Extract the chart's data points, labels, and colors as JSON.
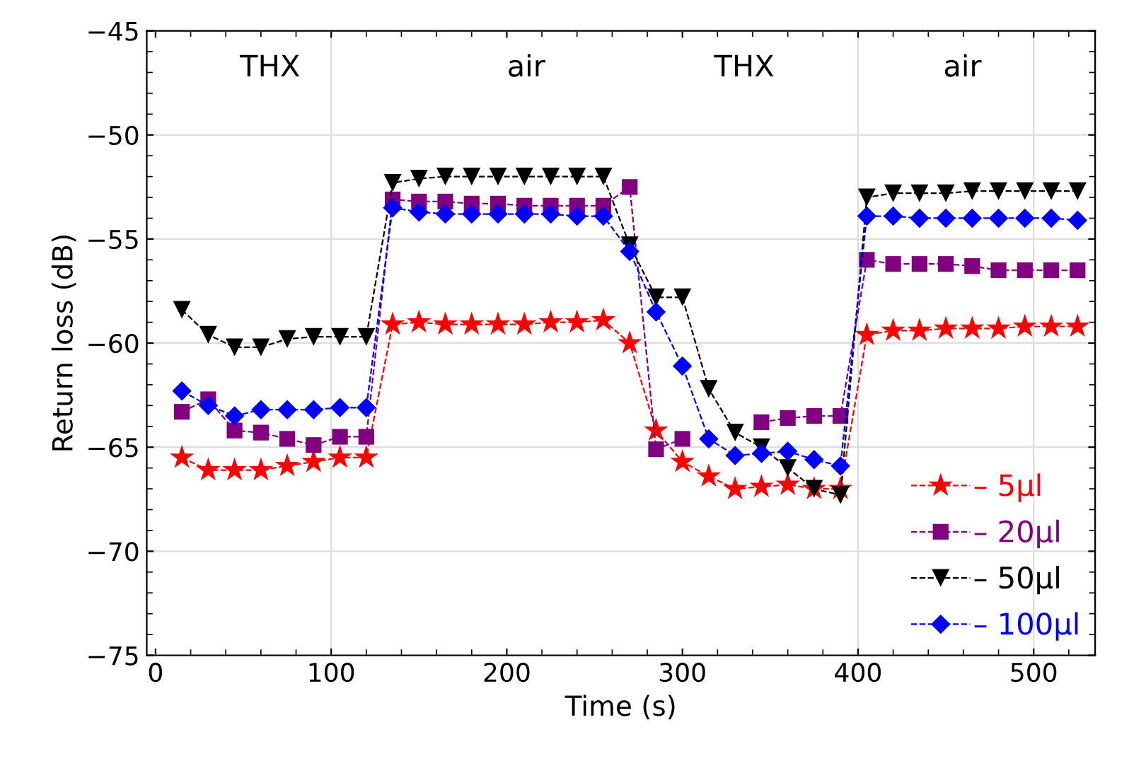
{
  "chart_data": {
    "type": "line",
    "xlabel": "Time (s)",
    "ylabel": "Return loss (dB)",
    "x": [
      15,
      30,
      45,
      60,
      75,
      90,
      105,
      120,
      135,
      150,
      165,
      180,
      195,
      210,
      225,
      240,
      255,
      270,
      285,
      300,
      315,
      330,
      345,
      360,
      375,
      390,
      405,
      420,
      435,
      450,
      465,
      480,
      495,
      510,
      525
    ],
    "xlim": [
      -5,
      535
    ],
    "xticks": [
      0,
      100,
      200,
      300,
      400,
      500
    ],
    "ylim": [
      -75,
      -45
    ],
    "yticks": [
      -75,
      -70,
      -65,
      -60,
      -55,
      -50,
      -45
    ],
    "grid": "y",
    "legend": "bottom right",
    "line_style": "dashed",
    "ref_lines": [
      {
        "axis": "x",
        "value": 100,
        "color": "#dddddd"
      },
      {
        "axis": "x",
        "value": 400,
        "color": "#dddddd"
      },
      {
        "axis": "x",
        "value": 500,
        "color": "#dddddd"
      }
    ],
    "annotations": [
      "THX",
      "air",
      "THX",
      "air"
    ],
    "series": [
      {
        "name": "– 5μl",
        "color": "#ff0000",
        "marker": "star",
        "values": [
          -65.5,
          -66.1,
          -66.1,
          -66.1,
          -65.9,
          -65.7,
          -65.5,
          -65.5,
          -59.1,
          -59.0,
          -59.1,
          -59.1,
          -59.1,
          -59.1,
          -59.0,
          -59.0,
          -58.9,
          -60.0,
          -64.2,
          -65.7,
          -66.4,
          -67.0,
          -66.9,
          -66.8,
          -67.0,
          -67.0,
          -59.6,
          -59.4,
          -59.4,
          -59.3,
          -59.3,
          -59.3,
          -59.2,
          -59.2,
          -59.2
        ]
      },
      {
        "name": "– 20μl",
        "color": "#800080",
        "marker": "square",
        "values": [
          -63.3,
          -62.7,
          -64.2,
          -64.3,
          -64.6,
          -64.9,
          -64.5,
          -64.5,
          -53.1,
          -53.2,
          -53.2,
          -53.3,
          -53.3,
          -53.4,
          -53.4,
          -53.4,
          -53.4,
          -52.5,
          -65.1,
          -64.6,
          null,
          null,
          -63.8,
          -63.6,
          -63.5,
          -63.5,
          -56.0,
          -56.2,
          -56.2,
          -56.2,
          -56.3,
          -56.5,
          -56.5,
          -56.5,
          -56.5
        ]
      },
      {
        "name": "– 50μl",
        "color": "#000000",
        "marker": "triangle",
        "values": [
          -58.4,
          -59.6,
          -60.2,
          -60.2,
          -59.8,
          -59.7,
          -59.7,
          -59.7,
          -52.3,
          -52.1,
          -52.0,
          -52.0,
          -52.0,
          -52.0,
          -52.0,
          -52.0,
          -52.0,
          -55.3,
          -57.8,
          -57.8,
          -62.2,
          -64.3,
          -65.0,
          -66.0,
          -67.0,
          -67.3,
          -53.0,
          -52.8,
          -52.8,
          -52.8,
          -52.7,
          -52.7,
          -52.7,
          -52.7,
          -52.7
        ]
      },
      {
        "name": "– 100μl",
        "color": "#0000ff",
        "marker": "diamond",
        "values": [
          -62.3,
          -63.0,
          -63.5,
          -63.2,
          -63.2,
          -63.2,
          -63.1,
          -63.1,
          -53.5,
          -53.7,
          -53.8,
          -53.8,
          -53.8,
          -53.8,
          -53.8,
          -53.9,
          -53.9,
          -55.6,
          -58.5,
          -61.1,
          -64.6,
          -65.4,
          -65.3,
          -65.2,
          -65.6,
          -65.9,
          -53.9,
          -53.9,
          -54.0,
          -54.0,
          -54.0,
          -54.0,
          -54.0,
          -54.0,
          -54.1
        ]
      }
    ]
  }
}
